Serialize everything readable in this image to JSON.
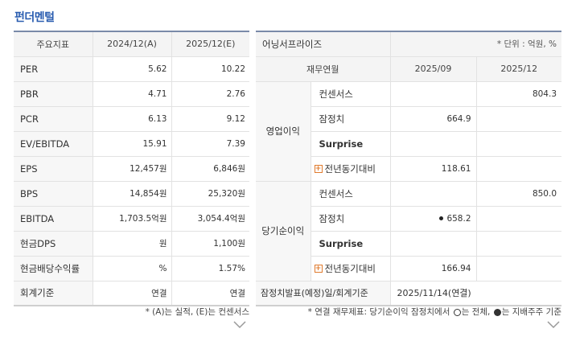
{
  "title": "펀더멘털",
  "left": {
    "headers": [
      "주요지표",
      "2024/12(A)",
      "2025/12(E)"
    ],
    "rows": [
      {
        "label": "PER",
        "a": "5.62",
        "e": "10.22"
      },
      {
        "label": "PBR",
        "a": "4.71",
        "e": "2.76"
      },
      {
        "label": "PCR",
        "a": "6.13",
        "e": "9.12"
      },
      {
        "label": "EV/EBITDA",
        "a": "15.91",
        "e": "7.39"
      },
      {
        "label": "EPS",
        "a": "12,457원",
        "e": "6,846원"
      },
      {
        "label": "BPS",
        "a": "14,854원",
        "e": "25,320원"
      },
      {
        "label": "EBITDA",
        "a": "1,703.5억원",
        "e": "3,054.4억원"
      },
      {
        "label": "현금DPS",
        "a": "원",
        "e": "1,100원"
      },
      {
        "label": "현금배당수익률",
        "a": "%",
        "e": "1.57%"
      },
      {
        "label": "회계기준",
        "a": "연결",
        "e": "연결"
      }
    ],
    "note": "* (A)는 실적, (E)는 컨센서스"
  },
  "right": {
    "title": "어닝서프라이즈",
    "unit": "* 단위 : 억원, %",
    "headers": [
      "재무연월",
      "2025/09",
      "2025/12"
    ],
    "op_group": "영업이익",
    "op_rows": [
      {
        "label": "컨센서스",
        "q3": "",
        "q4": "804.3"
      },
      {
        "label": "잠정치",
        "q3": "664.9",
        "q4": ""
      },
      {
        "label": "Surprise",
        "q3": "",
        "q4": ""
      },
      {
        "label": "전년동기대비",
        "q3": "118.61",
        "q4": ""
      }
    ],
    "ni_group": "당기순이익",
    "ni_rows": [
      {
        "label": "컨센서스",
        "q3": "",
        "q4": "850.0"
      },
      {
        "label": "잠정치",
        "q3": "658.2",
        "q4": ""
      },
      {
        "label": "Surprise",
        "q3": "",
        "q4": ""
      },
      {
        "label": "전년동기대비",
        "q3": "166.94",
        "q4": ""
      }
    ],
    "footer_label": "잠정치발표(예정)일/회계기준",
    "footer_value": "2025/11/14(연결)",
    "note_prefix": "* 연결 재무제표: 당기순이익 잠정치에서",
    "note_mid": "는 전체,",
    "note_suffix": "는 지배주주 기준"
  }
}
